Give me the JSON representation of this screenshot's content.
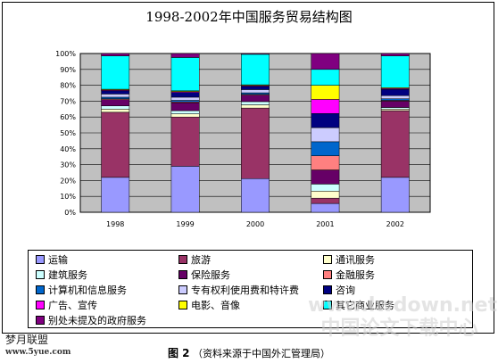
{
  "chart_data": {
    "type": "bar",
    "stacked": true,
    "title": "1998-2002年中国服务贸易结构图",
    "categories": [
      "1998",
      "1999",
      "2000",
      "2001",
      "2002"
    ],
    "yticks": [
      "0%",
      "10%",
      "20%",
      "30%",
      "40%",
      "50%",
      "60%",
      "70%",
      "80%",
      "90%",
      "100%"
    ],
    "ylim": [
      0,
      100
    ],
    "grid": true,
    "legend_position": "bottom",
    "series": [
      {
        "name": "运输",
        "color": "#9999ff",
        "values": [
          22,
          29,
          21,
          5,
          22
        ]
      },
      {
        "name": "旅游",
        "color": "#993366",
        "values": [
          41,
          31,
          44,
          3,
          42
        ]
      },
      {
        "name": "通讯服务",
        "color": "#ffffcc",
        "values": [
          2,
          2,
          2,
          4,
          1
        ]
      },
      {
        "name": "建筑服务",
        "color": "#ccffff",
        "values": [
          2,
          2,
          2,
          4,
          1
        ]
      },
      {
        "name": "保险服务",
        "color": "#660066",
        "values": [
          4,
          5,
          4,
          8,
          4
        ]
      },
      {
        "name": "金融服务",
        "color": "#ff8080",
        "values": [
          0.5,
          0.5,
          0.5,
          8,
          0.5
        ]
      },
      {
        "name": "计算机和信息服务",
        "color": "#0066cc",
        "values": [
          1,
          1,
          1,
          8,
          1
        ]
      },
      {
        "name": "专有权利使用费和特许费",
        "color": "#ccccff",
        "values": [
          2,
          2,
          2,
          8,
          2
        ]
      },
      {
        "name": "咨询",
        "color": "#000080",
        "values": [
          2,
          3,
          2,
          8,
          4
        ]
      },
      {
        "name": "广告、宣传",
        "color": "#ff00ff",
        "values": [
          0.5,
          0.5,
          0.5,
          8,
          0.5
        ]
      },
      {
        "name": "电影、音像",
        "color": "#ffff00",
        "values": [
          0.5,
          0.5,
          0.5,
          8,
          0.5
        ]
      },
      {
        "name": "其它商业服务",
        "color": "#00ffff",
        "values": [
          21,
          21,
          19,
          9,
          20
        ]
      },
      {
        "name": "别处未提及的政府服务",
        "color": "#800080",
        "values": [
          1.5,
          2.5,
          0.5,
          9,
          1.5
        ]
      }
    ]
  },
  "caption": {
    "figure": "图 2",
    "source": "（资料来源于中国外汇管理局）"
  },
  "logo": {
    "name": "梦月联盟",
    "site": "www.5yue.com"
  },
  "watermark": {
    "line1": "www.lwdown.net",
    "line2": "中国论文下载中心"
  },
  "colors": {
    "plot_background": "#c0c0c0",
    "gridline": "#000000",
    "border": "#000000"
  }
}
